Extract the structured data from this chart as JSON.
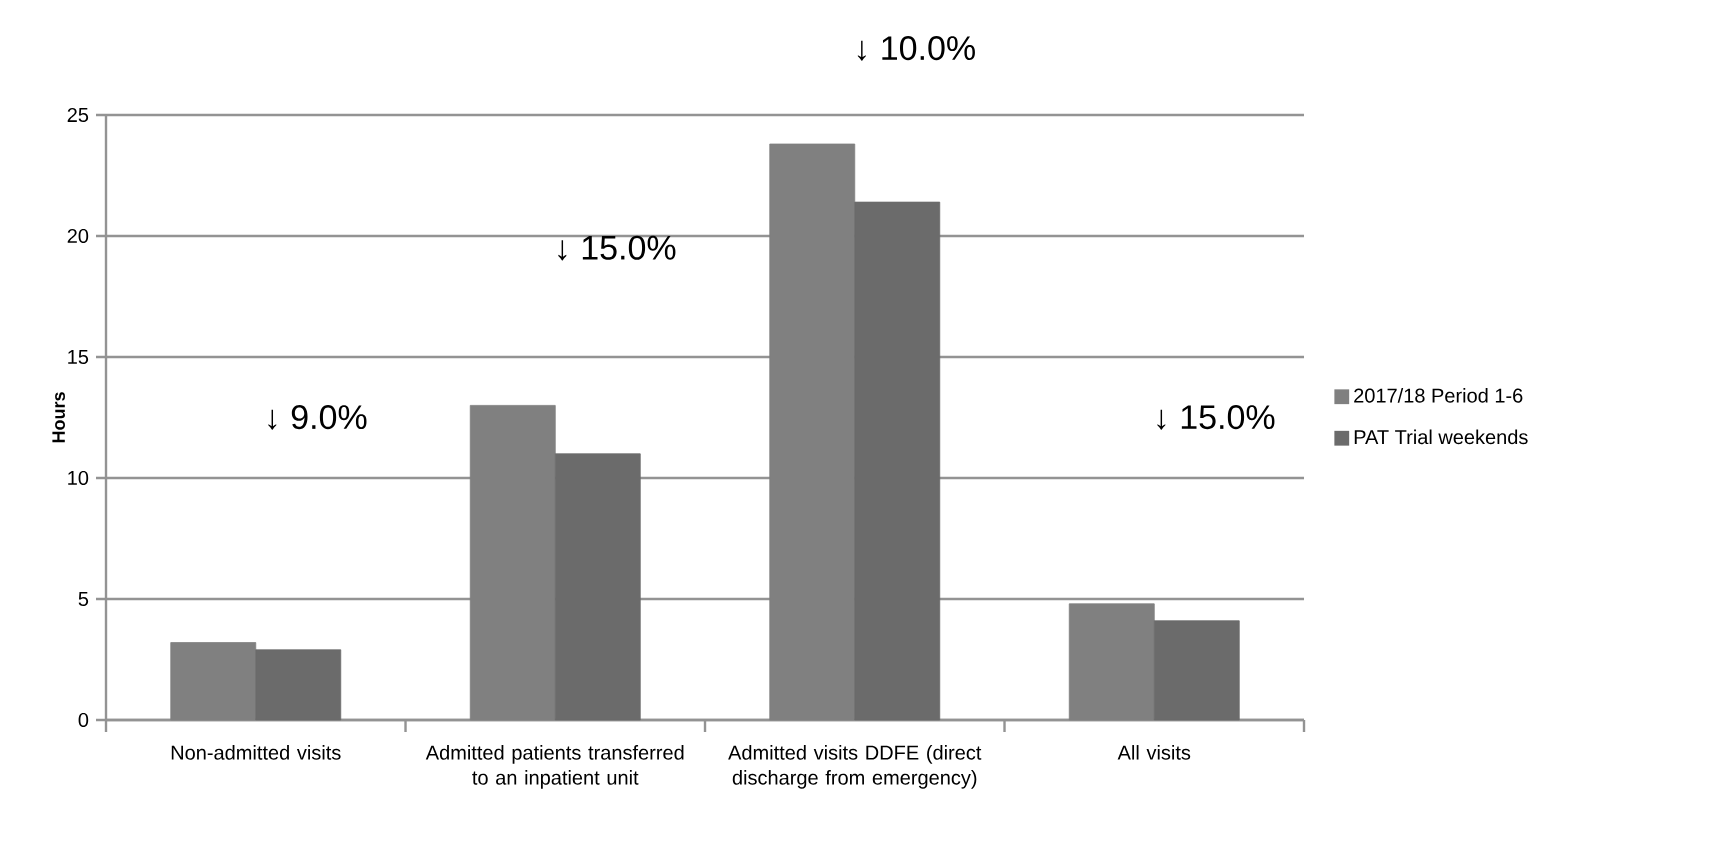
{
  "chart_data": {
    "type": "bar",
    "ylabel": "Hours",
    "categories": [
      "Non-admitted visits",
      "Admitted patients transferred to an inpatient unit",
      "Admitted visits DDFE (direct discharge from emergency)",
      "All visits"
    ],
    "series": [
      {
        "name": "2017/18 Period 1-6",
        "color": "#808080",
        "values": [
          3.2,
          13.0,
          23.8,
          4.8
        ]
      },
      {
        "name": "PAT Trial weekends",
        "color": "#6b6b6b",
        "values": [
          2.9,
          11.0,
          21.4,
          4.1
        ]
      }
    ],
    "ylim": [
      0,
      25
    ],
    "yticks": [
      0,
      5,
      10,
      15,
      20,
      25
    ],
    "grid": "y",
    "legend": "right",
    "annotations": [
      "↓ 9.0%",
      "↓ 15.0%",
      "↓ 10.0%",
      "↓ 15.0%"
    ]
  }
}
